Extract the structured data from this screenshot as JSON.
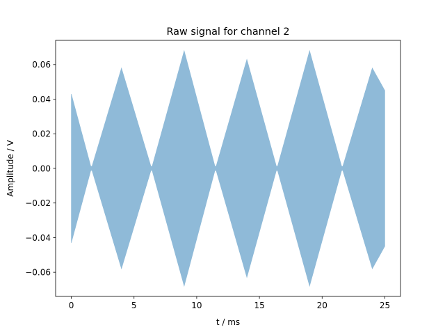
{
  "chart_data": {
    "type": "area",
    "title": "Raw signal for channel 2",
    "xlabel": "t / ms",
    "ylabel": "Amplitude / V",
    "xlim": [
      -1.25,
      26.25
    ],
    "ylim": [
      -0.074,
      0.074
    ],
    "xticks": [
      0,
      5,
      10,
      15,
      20,
      25
    ],
    "yticks": [
      -0.06,
      -0.04,
      -0.02,
      0.0,
      0.02,
      0.04,
      0.06
    ],
    "ytick_labels": [
      "−0.06",
      "−0.04",
      "−0.02",
      "0.00",
      "0.02",
      "0.04",
      "0.06"
    ],
    "grid": false,
    "series": [
      {
        "color": "#8fbad8",
        "x_start": 0,
        "x_end": 25,
        "envelope": {
          "t": [
            0,
            1.6,
            4.0,
            6.4,
            9.0,
            11.5,
            14.0,
            16.4,
            19.0,
            21.6,
            24.0,
            25.0
          ],
          "amplitude": [
            0.043,
            0.0,
            0.058,
            0.0,
            0.068,
            0.0,
            0.063,
            0.0,
            0.068,
            0.0,
            0.058,
            0.045
          ]
        }
      }
    ]
  }
}
